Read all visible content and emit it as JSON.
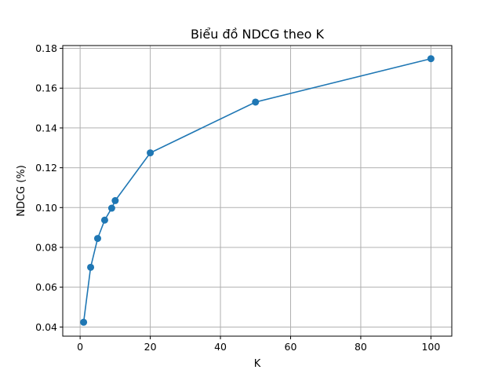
{
  "chart_data": {
    "type": "line",
    "title": "Biểu đồ NDCG theo K",
    "xlabel": "K",
    "ylabel": "NDCG (%)",
    "xlim": [
      -4.95,
      105.95
    ],
    "ylim": [
      0.0354,
      0.1814
    ],
    "xticks": [
      0,
      20,
      40,
      60,
      80,
      100
    ],
    "xtick_labels": [
      "0",
      "20",
      "40",
      "60",
      "80",
      "100"
    ],
    "yticks": [
      0.04,
      0.06,
      0.08,
      0.1,
      0.12,
      0.14,
      0.16,
      0.18
    ],
    "ytick_labels": [
      "0.04",
      "0.06",
      "0.08",
      "0.10",
      "0.12",
      "0.14",
      "0.16",
      "0.18"
    ],
    "grid": true,
    "series": [
      {
        "color": "#1f77b4",
        "marker": "circle",
        "x": [
          1,
          3,
          5,
          7,
          9,
          10,
          20,
          50,
          100
        ],
        "y": [
          0.0424,
          0.07,
          0.0845,
          0.0937,
          0.0997,
          0.1035,
          0.1275,
          0.153,
          0.1748
        ]
      }
    ]
  }
}
